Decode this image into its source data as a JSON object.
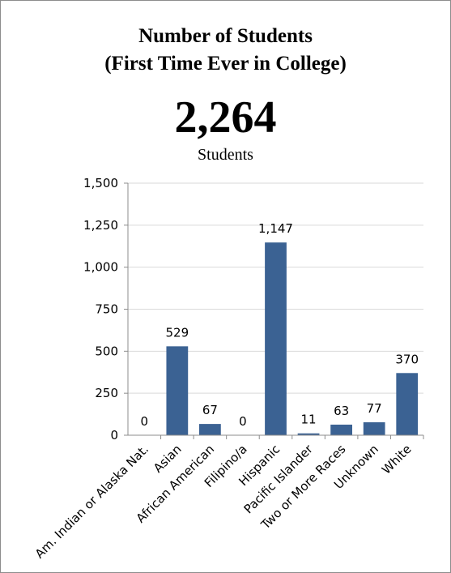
{
  "header": {
    "title_line1": "Number of Students",
    "title_line2": "(First Time Ever in College)",
    "total": "2,264",
    "total_caption": "Students"
  },
  "chart_data": {
    "type": "bar",
    "categories": [
      "Am. Indian or Alaska Nat.",
      "Asian",
      "African American",
      "Filipino/a",
      "Hispanic",
      "Pacific Islander",
      "Two or More Races",
      "Unknown",
      "White"
    ],
    "values": [
      0,
      529,
      67,
      0,
      1147,
      11,
      63,
      77,
      370
    ],
    "data_labels": [
      "0",
      "529",
      "67",
      "0",
      "1,147",
      "11",
      "63",
      "77",
      "370"
    ],
    "ylim": [
      0,
      1500
    ],
    "yticks": [
      0,
      250,
      500,
      750,
      1000,
      1250,
      1500
    ],
    "ytick_labels": [
      "0",
      "250",
      "500",
      "750",
      "1,000",
      "1,250",
      "1,500"
    ],
    "bar_color": "#3b6293",
    "grid": true,
    "legend": "none"
  }
}
